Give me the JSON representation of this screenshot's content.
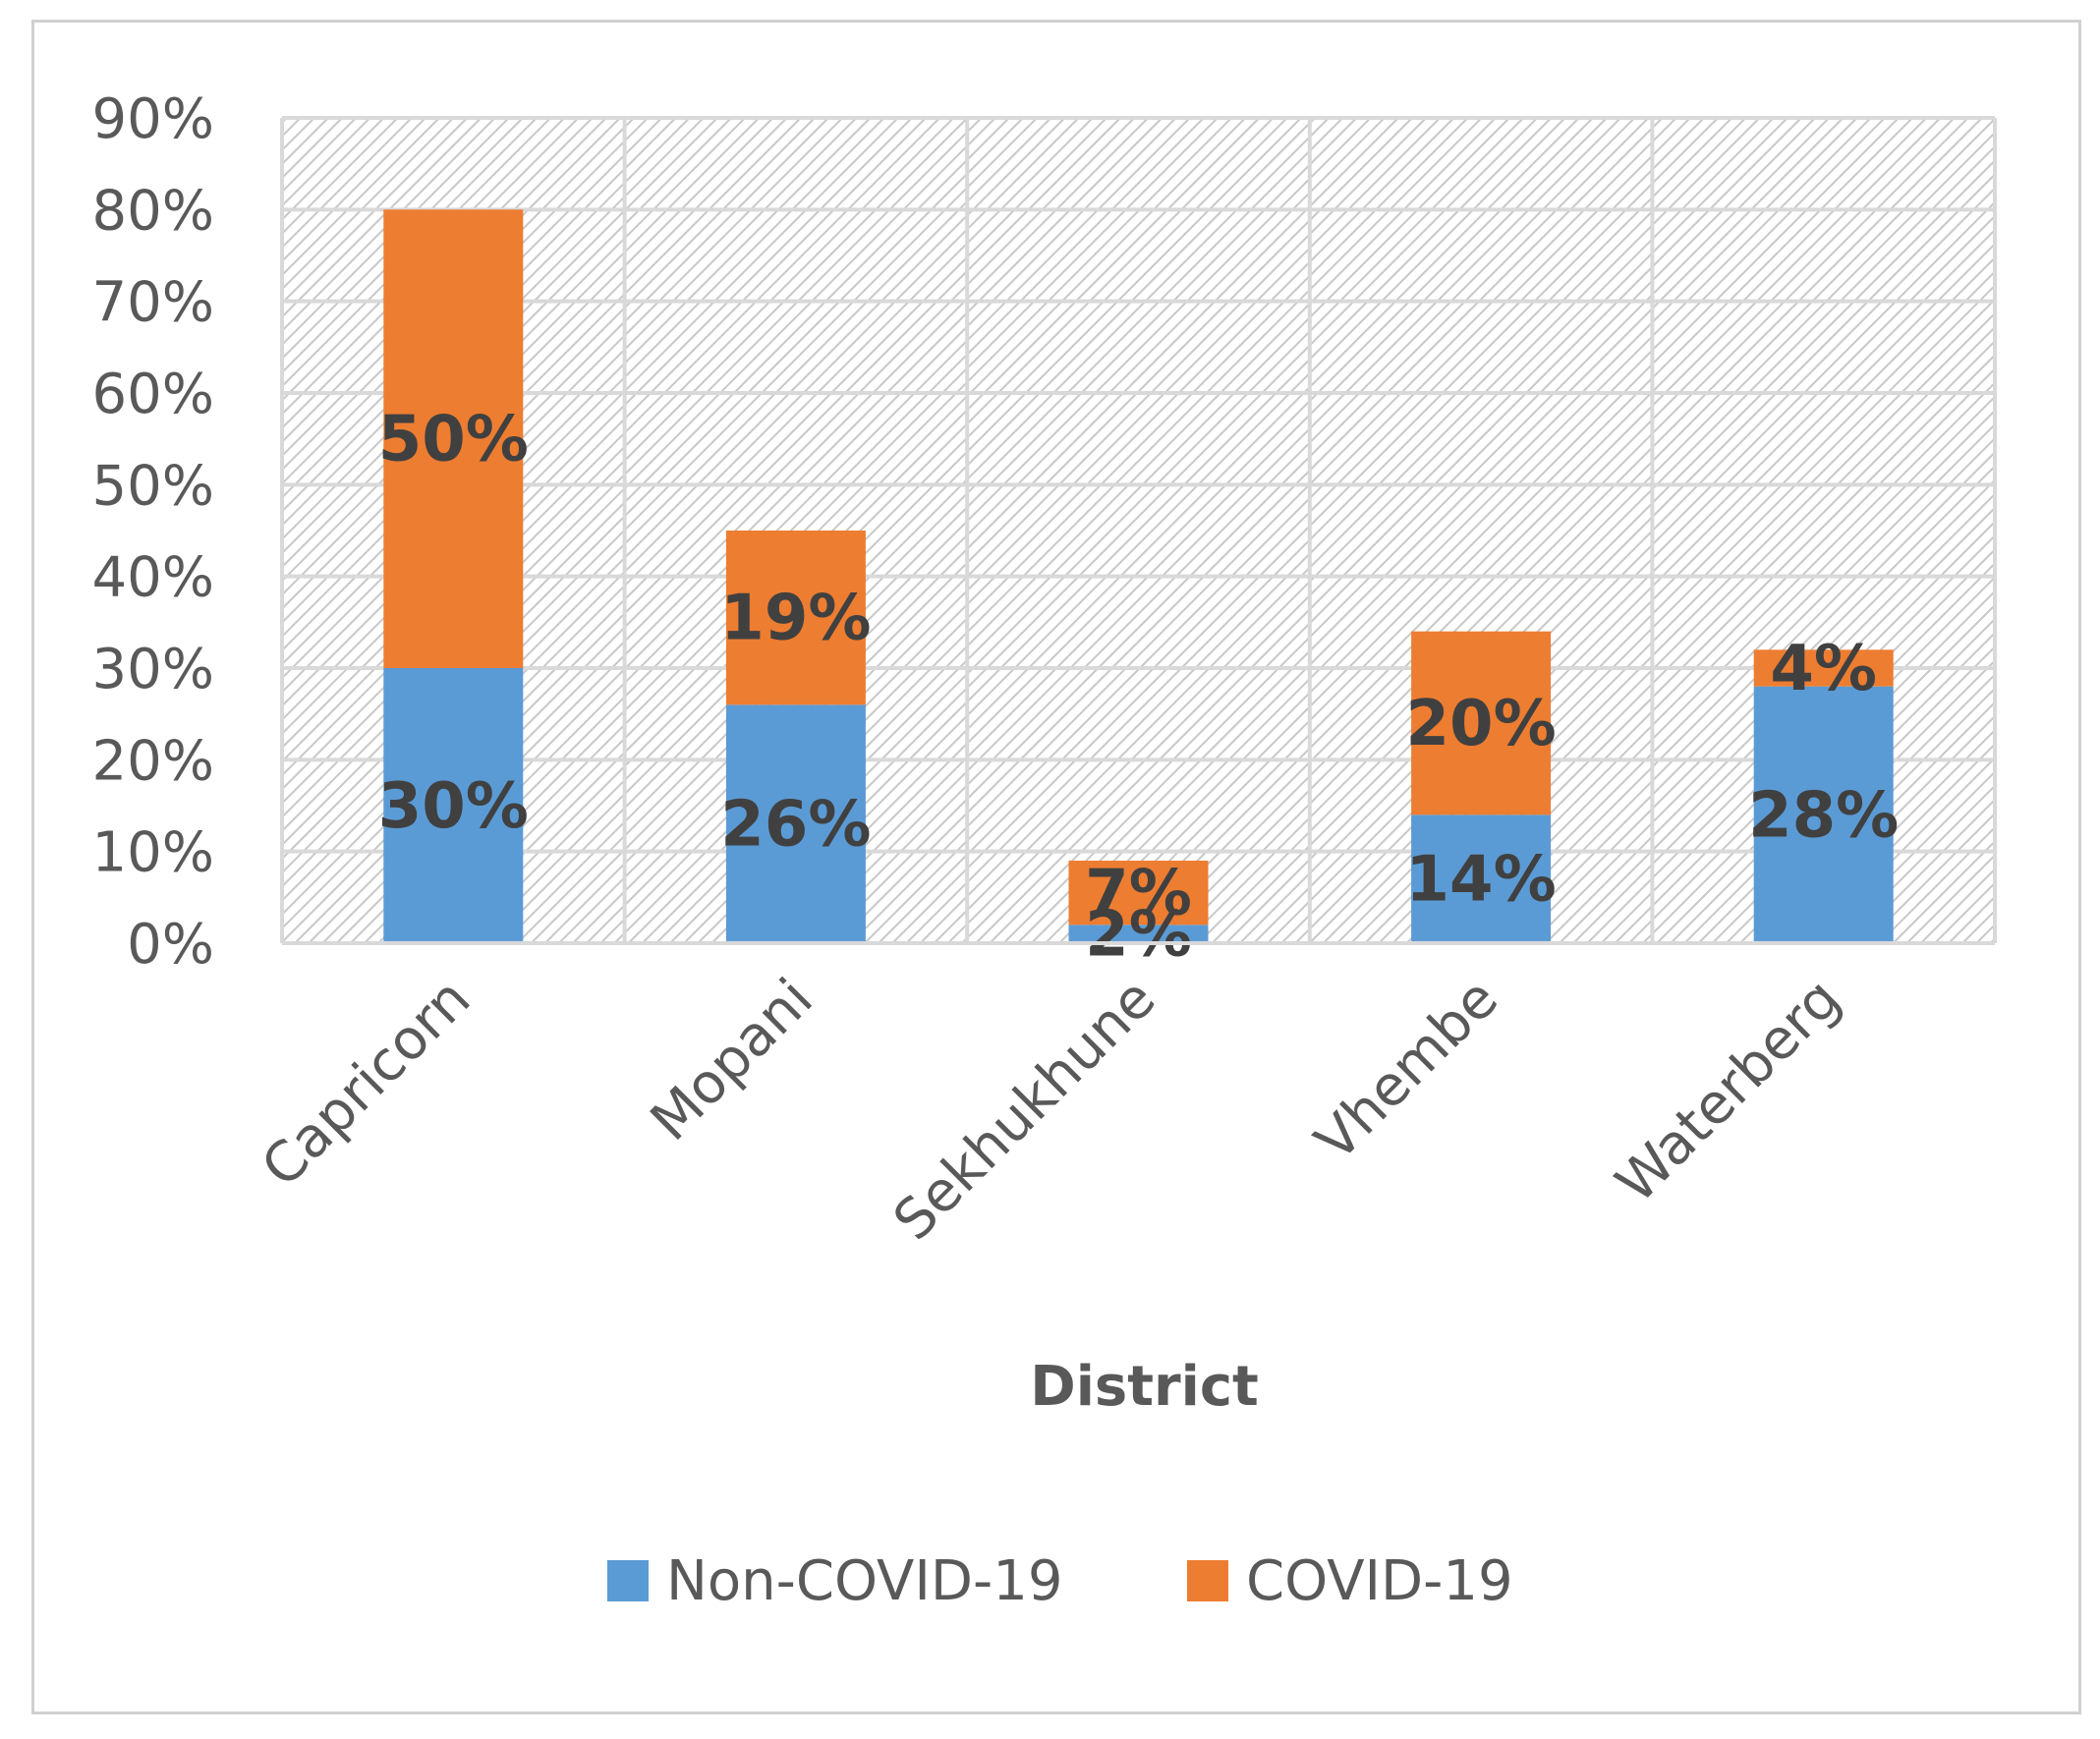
{
  "chart_data": {
    "type": "bar",
    "stacked": true,
    "title": "",
    "xlabel": "District",
    "ylabel": "",
    "ylim": [
      0,
      90
    ],
    "yticks": [
      "0%",
      "10%",
      "20%",
      "30%",
      "40%",
      "50%",
      "60%",
      "70%",
      "80%",
      "90%"
    ],
    "categories": [
      "Capricorn",
      "Mopani",
      "Sekhukhune",
      "Vhembe",
      "Waterberg"
    ],
    "series": [
      {
        "name": "Non-COVID-19",
        "color": "#5b9bd5",
        "values": [
          30,
          26,
          2,
          14,
          28
        ],
        "labels": [
          "30%",
          "26%",
          "2%",
          "14%",
          "28%"
        ]
      },
      {
        "name": "COVID-19",
        "color": "#ed7d31",
        "values": [
          50,
          19,
          7,
          20,
          4
        ],
        "labels": [
          "50%",
          "19%",
          "7%",
          "20%",
          "4%"
        ]
      }
    ],
    "legend_position": "bottom",
    "grid": true
  }
}
